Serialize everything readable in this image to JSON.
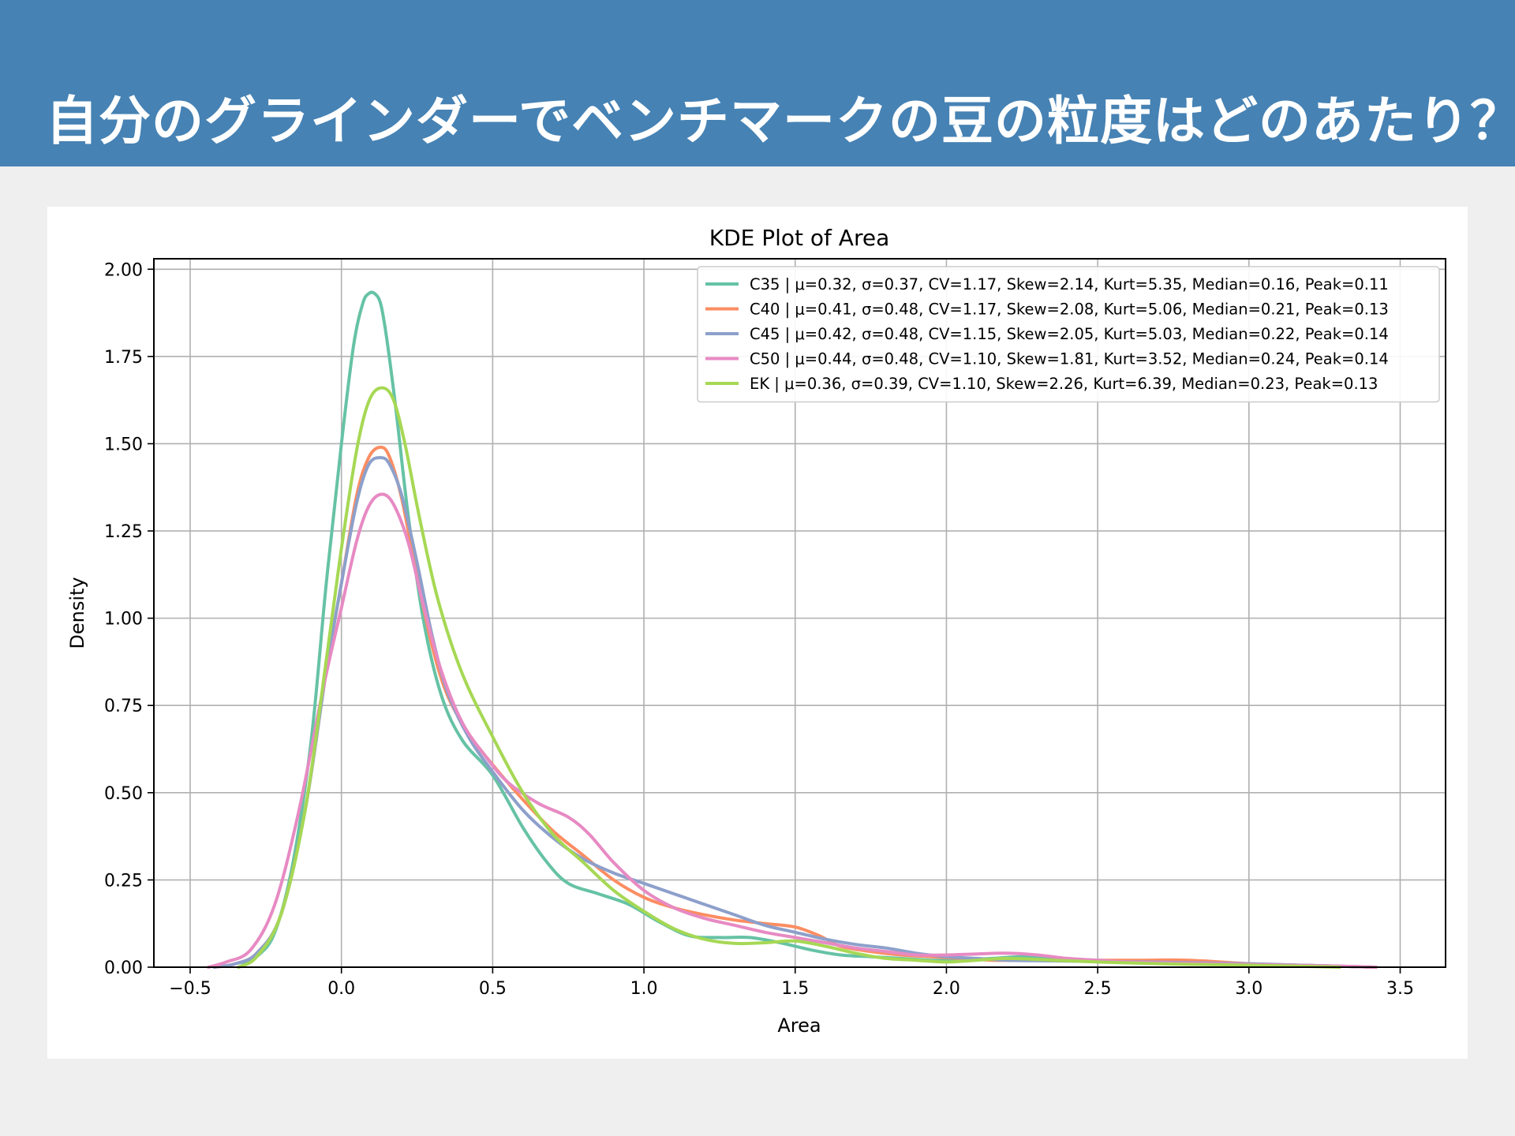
{
  "header": {
    "title": "自分のグラインダーでベンチマークの豆の粒度はどのあたり？"
  },
  "colors": {
    "header_bg": "#4682b4",
    "page_bg": "#efefef",
    "card_bg": "#ffffff",
    "grid": "#b0b0b0"
  },
  "chart_data": {
    "type": "line",
    "title": "KDE Plot of Area",
    "xlabel": "Area",
    "ylabel": "Density",
    "xlim": [
      -0.62,
      3.65
    ],
    "ylim": [
      0,
      2.03
    ],
    "xticks": [
      -0.5,
      0.0,
      0.5,
      1.0,
      1.5,
      2.0,
      2.5,
      3.0,
      3.5
    ],
    "xtick_labels": [
      "−0.5",
      "0.0",
      "0.5",
      "1.0",
      "1.5",
      "2.0",
      "2.5",
      "3.0",
      "3.5"
    ],
    "yticks": [
      0,
      0.25,
      0.5,
      0.75,
      1.0,
      1.25,
      1.5,
      1.75,
      2.0
    ],
    "ytick_labels": [
      "0.00",
      "0.25",
      "0.50",
      "0.75",
      "1.00",
      "1.25",
      "1.50",
      "1.75",
      "2.00"
    ],
    "grid": true,
    "legend_position": "top-right",
    "series": [
      {
        "name": "C35 | μ=0.32, σ=0.37, CV=1.17, Skew=2.14, Kurt=5.35, Median=0.16, Peak=0.11",
        "color": "#66c2a5",
        "x": [
          -0.34,
          -0.28,
          -0.22,
          -0.16,
          -0.1,
          -0.05,
          0.0,
          0.04,
          0.07,
          0.09,
          0.11,
          0.13,
          0.15,
          0.18,
          0.22,
          0.27,
          0.33,
          0.4,
          0.5,
          0.6,
          0.68,
          0.75,
          0.85,
          0.95,
          1.05,
          1.15,
          1.25,
          1.35,
          1.45,
          1.55,
          1.65,
          1.75,
          1.85,
          1.95,
          2.05,
          2.15,
          2.25,
          2.35,
          2.5,
          2.65,
          2.8,
          3.0,
          3.2,
          3.42
        ],
        "y": [
          0.0,
          0.03,
          0.1,
          0.3,
          0.65,
          1.1,
          1.5,
          1.78,
          1.9,
          1.93,
          1.93,
          1.9,
          1.8,
          1.6,
          1.3,
          1.0,
          0.78,
          0.65,
          0.55,
          0.4,
          0.3,
          0.24,
          0.21,
          0.18,
          0.13,
          0.09,
          0.085,
          0.085,
          0.07,
          0.05,
          0.035,
          0.03,
          0.025,
          0.02,
          0.02,
          0.025,
          0.03,
          0.025,
          0.02,
          0.015,
          0.012,
          0.008,
          0.005,
          0.0
        ]
      },
      {
        "name": "C40 | μ=0.41, σ=0.48, CV=1.17, Skew=2.08, Kurt=5.06, Median=0.21, Peak=0.13",
        "color": "#fc8d62",
        "x": [
          -0.42,
          -0.35,
          -0.28,
          -0.2,
          -0.12,
          -0.05,
          0.0,
          0.05,
          0.09,
          0.13,
          0.16,
          0.2,
          0.25,
          0.3,
          0.35,
          0.42,
          0.5,
          0.6,
          0.7,
          0.8,
          0.9,
          1.0,
          1.1,
          1.2,
          1.3,
          1.4,
          1.5,
          1.58,
          1.65,
          1.75,
          1.85,
          1.95,
          2.05,
          2.15,
          2.25,
          2.35,
          2.5,
          2.65,
          2.8,
          3.0,
          3.2,
          3.42
        ],
        "y": [
          0.0,
          0.01,
          0.04,
          0.15,
          0.45,
          0.85,
          1.1,
          1.35,
          1.46,
          1.49,
          1.46,
          1.34,
          1.12,
          0.92,
          0.78,
          0.67,
          0.58,
          0.48,
          0.39,
          0.32,
          0.25,
          0.2,
          0.17,
          0.15,
          0.135,
          0.125,
          0.115,
          0.09,
          0.06,
          0.045,
          0.035,
          0.03,
          0.025,
          0.02,
          0.02,
          0.02,
          0.02,
          0.02,
          0.02,
          0.01,
          0.005,
          0.0
        ]
      },
      {
        "name": "C45 | μ=0.42, σ=0.48, CV=1.15, Skew=2.05, Kurt=5.03, Median=0.22, Peak=0.14",
        "color": "#8da0cb",
        "x": [
          -0.42,
          -0.35,
          -0.28,
          -0.2,
          -0.12,
          -0.05,
          0.0,
          0.05,
          0.09,
          0.13,
          0.16,
          0.2,
          0.25,
          0.3,
          0.35,
          0.42,
          0.5,
          0.6,
          0.7,
          0.8,
          0.9,
          1.0,
          1.1,
          1.2,
          1.3,
          1.4,
          1.5,
          1.6,
          1.7,
          1.8,
          1.9,
          2.0,
          2.1,
          2.2,
          2.35,
          2.5,
          2.65,
          2.8,
          3.0,
          3.2,
          3.42
        ],
        "y": [
          0.0,
          0.01,
          0.04,
          0.15,
          0.45,
          0.85,
          1.1,
          1.33,
          1.44,
          1.46,
          1.44,
          1.35,
          1.16,
          0.95,
          0.79,
          0.66,
          0.56,
          0.45,
          0.37,
          0.31,
          0.27,
          0.24,
          0.21,
          0.18,
          0.15,
          0.12,
          0.1,
          0.08,
          0.065,
          0.055,
          0.04,
          0.03,
          0.025,
          0.02,
          0.018,
          0.016,
          0.015,
          0.013,
          0.01,
          0.005,
          0.0
        ]
      },
      {
        "name": "C50 | μ=0.44, σ=0.48, CV=1.10, Skew=1.81, Kurt=3.52, Median=0.24, Peak=0.14",
        "color": "#e78ac3",
        "x": [
          -0.44,
          -0.38,
          -0.3,
          -0.22,
          -0.14,
          -0.06,
          0.0,
          0.05,
          0.09,
          0.13,
          0.17,
          0.22,
          0.27,
          0.33,
          0.4,
          0.48,
          0.55,
          0.65,
          0.75,
          0.82,
          0.9,
          1.0,
          1.1,
          1.2,
          1.3,
          1.4,
          1.5,
          1.6,
          1.7,
          1.8,
          1.9,
          2.0,
          2.1,
          2.2,
          2.3,
          2.4,
          2.5,
          2.6,
          2.75,
          2.9,
          3.1,
          3.3,
          3.42
        ],
        "y": [
          0.0,
          0.015,
          0.05,
          0.18,
          0.45,
          0.8,
          1.03,
          1.22,
          1.32,
          1.355,
          1.33,
          1.22,
          1.04,
          0.85,
          0.7,
          0.6,
          0.53,
          0.47,
          0.43,
          0.38,
          0.3,
          0.22,
          0.17,
          0.14,
          0.12,
          0.1,
          0.085,
          0.07,
          0.055,
          0.045,
          0.035,
          0.035,
          0.038,
          0.04,
          0.035,
          0.025,
          0.02,
          0.015,
          0.012,
          0.01,
          0.006,
          0.003,
          0.0
        ]
      },
      {
        "name": "EK | μ=0.36, σ=0.39, CV=1.10, Skew=2.26, Kurt=6.39, Median=0.23, Peak=0.13",
        "color": "#a6d854",
        "x": [
          -0.34,
          -0.28,
          -0.2,
          -0.12,
          -0.05,
          0.0,
          0.05,
          0.09,
          0.13,
          0.17,
          0.21,
          0.26,
          0.32,
          0.4,
          0.5,
          0.6,
          0.7,
          0.8,
          0.9,
          1.0,
          1.1,
          1.2,
          1.3,
          1.4,
          1.5,
          1.6,
          1.7,
          1.8,
          1.9,
          2.0,
          2.1,
          2.2,
          2.35,
          2.5,
          2.7,
          2.9,
          3.1,
          3.3
        ],
        "y": [
          0.0,
          0.03,
          0.15,
          0.45,
          0.88,
          1.2,
          1.48,
          1.62,
          1.66,
          1.63,
          1.5,
          1.28,
          1.05,
          0.84,
          0.66,
          0.5,
          0.38,
          0.3,
          0.22,
          0.16,
          0.11,
          0.08,
          0.068,
          0.07,
          0.075,
          0.06,
          0.04,
          0.025,
          0.02,
          0.015,
          0.02,
          0.025,
          0.02,
          0.015,
          0.01,
          0.007,
          0.004,
          0.0
        ]
      }
    ]
  }
}
